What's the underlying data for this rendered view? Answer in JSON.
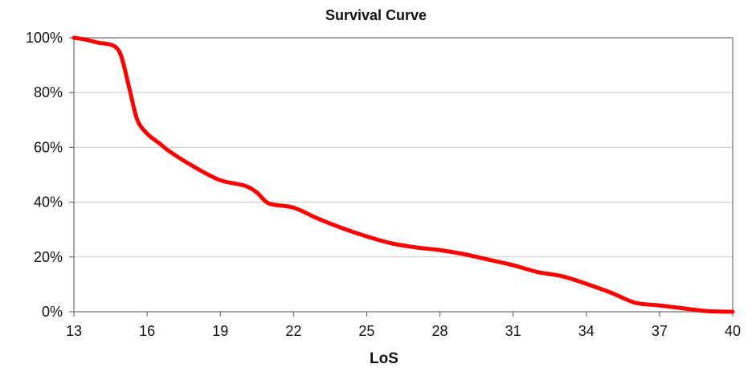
{
  "chart_data": {
    "type": "line",
    "title": "Survival Curve",
    "xlabel": "LoS",
    "ylabel": "",
    "xlim": [
      13,
      40
    ],
    "ylim": [
      0,
      100
    ],
    "x_ticks": [
      "13",
      "16",
      "19",
      "22",
      "25",
      "28",
      "31",
      "34",
      "37",
      "40"
    ],
    "y_ticks": [
      "0%",
      "20%",
      "40%",
      "60%",
      "80%",
      "100%"
    ],
    "grid": true,
    "legend": "none",
    "series": [
      {
        "color": "#ff0000",
        "x": [
          13,
          13.5,
          14,
          14.5,
          14.8,
          15,
          15.3,
          15.6,
          16,
          16.5,
          17,
          18,
          19,
          20,
          20.5,
          21,
          22,
          23,
          24,
          25,
          26,
          27,
          28,
          29,
          30,
          31,
          32,
          33,
          34,
          35,
          36,
          37,
          38,
          39,
          40
        ],
        "y": [
          100,
          99.3,
          98.2,
          97.5,
          95.8,
          91.5,
          80.5,
          70,
          65,
          61.5,
          58,
          52.5,
          48,
          46,
          43.5,
          39.5,
          38,
          34,
          30.5,
          27.5,
          25,
          23.5,
          22.5,
          21,
          19,
          17,
          14.5,
          13,
          10.2,
          7,
          3.3,
          2.3,
          1.2,
          0.2,
          0
        ]
      }
    ]
  }
}
